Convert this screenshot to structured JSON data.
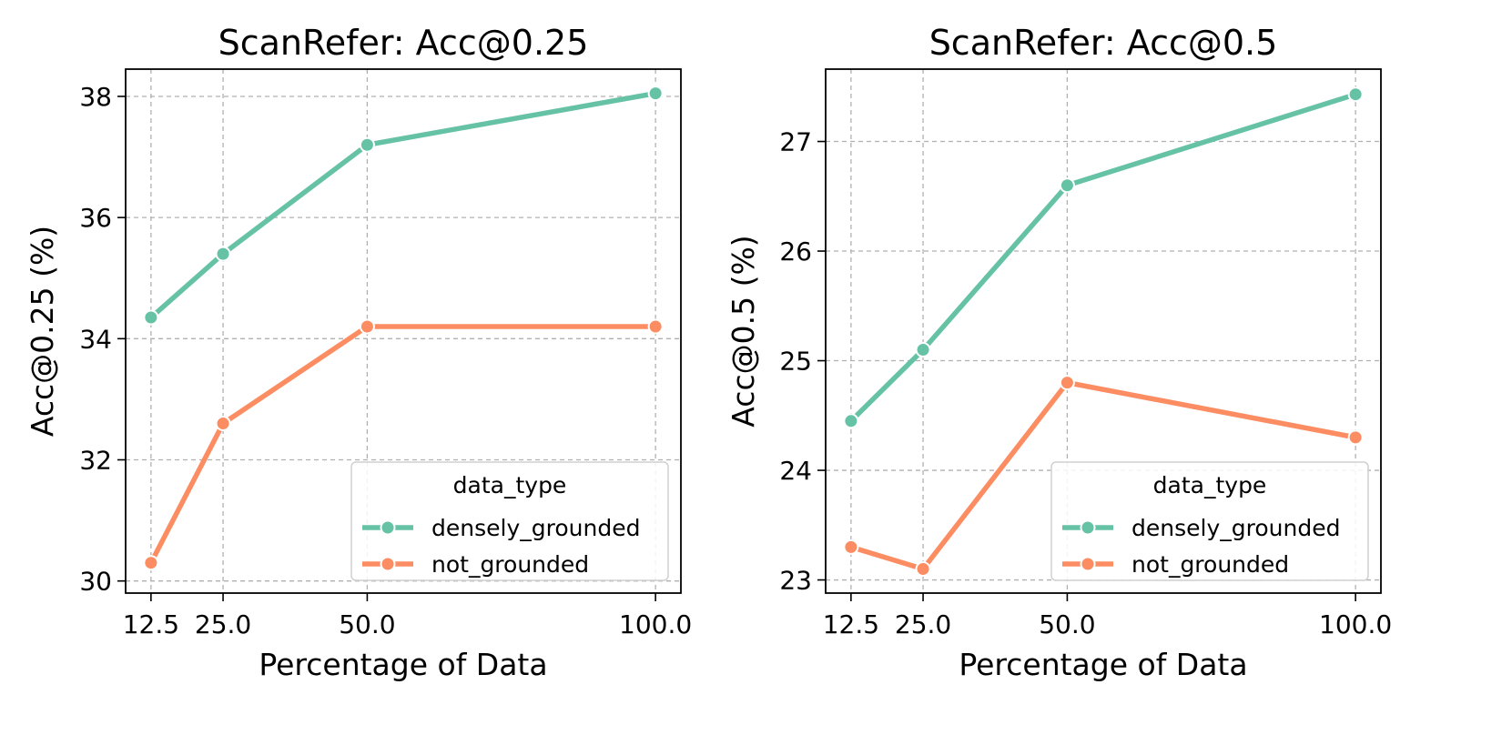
{
  "colors": {
    "densely_grounded": "#66c2a5",
    "not_grounded": "#fc8d62"
  },
  "legend_position": "lower right",
  "grid": true,
  "chart_data": [
    {
      "type": "line",
      "title": "ScanRefer: Acc@0.25",
      "xlabel": "Percentage of Data",
      "ylabel": "Acc@0.25 (%)",
      "x": [
        12.5,
        25.0,
        50.0,
        100.0
      ],
      "x_tick_labels": [
        "12.5",
        "25.0",
        "50.0",
        "100.0"
      ],
      "xlim": [
        8.1,
        104.4
      ],
      "ylim": [
        29.8,
        38.45
      ],
      "y_ticks": [
        30,
        32,
        34,
        36,
        38
      ],
      "legend_title": "data_type",
      "series": [
        {
          "name": "densely_grounded",
          "values": [
            34.35,
            35.4,
            37.2,
            38.05
          ]
        },
        {
          "name": "not_grounded",
          "values": [
            30.3,
            32.6,
            34.2,
            34.2
          ]
        }
      ]
    },
    {
      "type": "line",
      "title": "ScanRefer: Acc@0.5",
      "xlabel": "Percentage of Data",
      "ylabel": "Acc@0.5 (%)",
      "x": [
        12.5,
        25.0,
        50.0,
        100.0
      ],
      "x_tick_labels": [
        "12.5",
        "25.0",
        "50.0",
        "100.0"
      ],
      "xlim": [
        8.1,
        104.4
      ],
      "ylim": [
        22.88,
        27.66
      ],
      "y_ticks": [
        23,
        24,
        25,
        26,
        27
      ],
      "legend_title": "data_type",
      "series": [
        {
          "name": "densely_grounded",
          "values": [
            24.45,
            25.1,
            26.6,
            27.43
          ]
        },
        {
          "name": "not_grounded",
          "values": [
            23.3,
            23.1,
            24.8,
            24.3
          ]
        }
      ]
    }
  ]
}
